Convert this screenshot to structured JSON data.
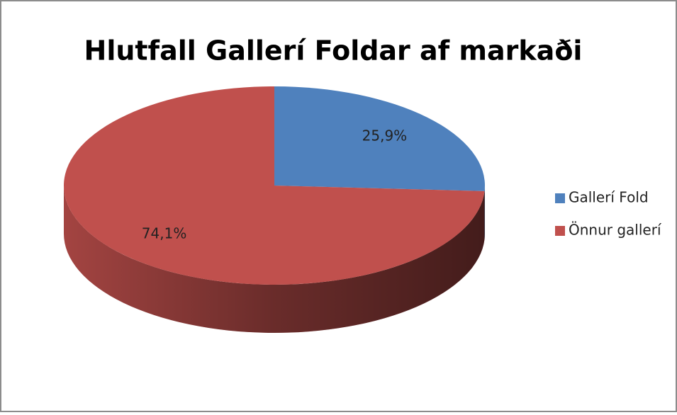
{
  "chart_data": {
    "type": "pie3d",
    "title": "Hlutfall Gallerí Foldar af markaði",
    "categories": [
      "Gallerí Fold",
      "Önnur gallerí"
    ],
    "values": [
      25.9,
      74.1
    ],
    "value_labels": [
      "25,9%",
      "74,1%"
    ],
    "colors": [
      "#4f81bd",
      "#c0504d"
    ],
    "legend": "right"
  }
}
